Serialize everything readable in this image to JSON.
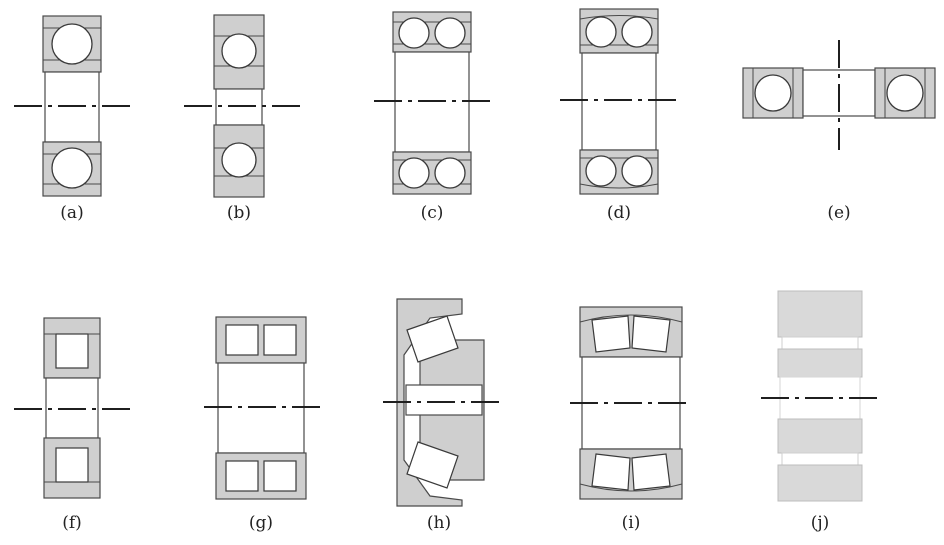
{
  "labels": {
    "a": "(a)",
    "b": "(b)",
    "c": "(c)",
    "d": "(d)",
    "e": "(e)",
    "f": "(f)",
    "g": "(g)",
    "h": "(h)",
    "i": "(i)",
    "j": "(j)"
  },
  "colors": {
    "ring_fill": "#cfcfcf",
    "outline": "#4a4a4a",
    "element_fill": "#ffffff",
    "axis_line": "#1f1f1f"
  }
}
